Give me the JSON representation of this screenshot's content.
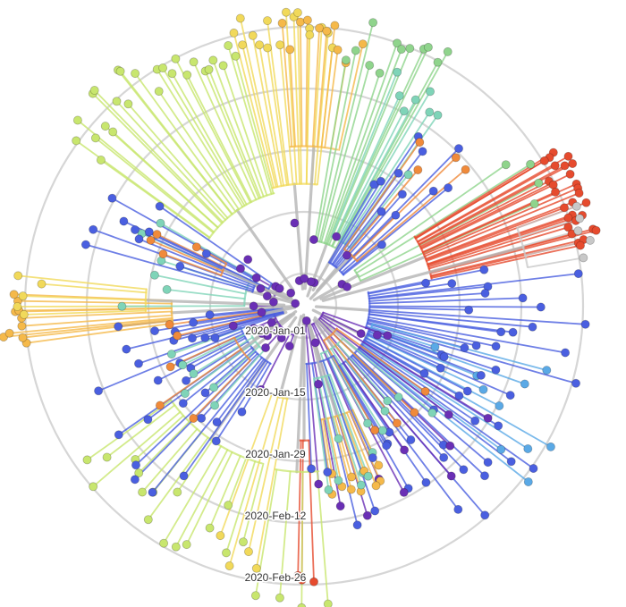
{
  "tree": {
    "view": "radial",
    "time_rings": [
      "2020-Jan-01",
      "2020-Jan-15",
      "2020-Jan-29",
      "2020-Feb-12",
      "2020-Feb-26"
    ],
    "ring_color": "#d6d6d6",
    "stem_color": "#b8b8b8",
    "palette": {
      "blue": "#4a5fe0",
      "indigo": "#6a55d0",
      "purple": "#6a2fb5",
      "light_blue": "#5aa9e6",
      "teal": "#7fd4b8",
      "green": "#8fd48c",
      "lime": "#c8e66e",
      "yellow": "#f1d95a",
      "light_orange": "#f5b94a",
      "orange": "#f08a3a",
      "red": "#e64b2e",
      "grey": "#c8c8c8"
    },
    "clades": [
      {
        "color": "lime",
        "start": 305,
        "end": 345,
        "n": 26,
        "len": [
          0.82,
          1.0
        ],
        "stem": [
          0.36,
          0.6
        ]
      },
      {
        "color": "yellow",
        "start": 345,
        "end": 6,
        "n": 16,
        "len": [
          0.85,
          1.0
        ],
        "stem": [
          0.3,
          0.55
        ]
      },
      {
        "color": "light_orange",
        "start": 355,
        "end": 12,
        "n": 10,
        "len": [
          0.8,
          0.95
        ],
        "stem": [
          0.3,
          0.55
        ]
      },
      {
        "color": "green",
        "start": 10,
        "end": 30,
        "n": 12,
        "len": [
          0.8,
          0.98
        ],
        "stem": [
          0.2,
          0.4
        ]
      },
      {
        "color": "teal",
        "start": 22,
        "end": 38,
        "n": 8,
        "len": [
          0.55,
          0.85
        ],
        "stem": [
          0.15,
          0.35
        ]
      },
      {
        "color": "blue",
        "start": 30,
        "end": 52,
        "n": 12,
        "len": [
          0.3,
          0.8
        ],
        "stem": [
          0.08,
          0.25
        ]
      },
      {
        "color": "orange",
        "start": 36,
        "end": 50,
        "n": 4,
        "len": [
          0.45,
          0.75
        ],
        "stem": [
          0.1,
          0.3
        ]
      },
      {
        "color": "green",
        "start": 55,
        "end": 66,
        "n": 4,
        "len": [
          0.8,
          0.95
        ],
        "stem": [
          0.15,
          0.35
        ]
      },
      {
        "color": "red",
        "start": 58,
        "end": 78,
        "n": 28,
        "len": [
          0.9,
          1.0
        ],
        "stem": [
          0.4,
          0.75
        ]
      },
      {
        "color": "grey",
        "start": 70,
        "end": 80,
        "n": 5,
        "len": [
          0.92,
          0.98
        ],
        "stem": [
          0.4,
          0.75
        ]
      },
      {
        "color": "blue",
        "start": 78,
        "end": 110,
        "n": 20,
        "len": [
          0.4,
          0.95
        ],
        "stem": [
          0.08,
          0.3
        ]
      },
      {
        "color": "light_blue",
        "start": 105,
        "end": 128,
        "n": 10,
        "len": [
          0.45,
          0.95
        ],
        "stem": [
          0.1,
          0.35
        ]
      },
      {
        "color": "blue",
        "start": 110,
        "end": 150,
        "n": 24,
        "len": [
          0.4,
          0.95
        ],
        "stem": [
          0.05,
          0.3
        ]
      },
      {
        "color": "purple",
        "start": 110,
        "end": 175,
        "n": 12,
        "len": [
          0.15,
          0.75
        ],
        "stem": [
          0.04,
          0.2
        ]
      },
      {
        "color": "teal",
        "start": 130,
        "end": 160,
        "n": 8,
        "len": [
          0.35,
          0.6
        ],
        "stem": [
          0.1,
          0.3
        ]
      },
      {
        "color": "orange",
        "start": 125,
        "end": 150,
        "n": 4,
        "len": [
          0.4,
          0.6
        ],
        "stem": [
          0.1,
          0.3
        ]
      },
      {
        "color": "light_orange",
        "start": 155,
        "end": 172,
        "n": 10,
        "len": [
          0.55,
          0.7
        ],
        "stem": [
          0.15,
          0.4
        ]
      },
      {
        "color": "blue",
        "start": 150,
        "end": 178,
        "n": 6,
        "len": [
          0.5,
          0.75
        ],
        "stem": [
          0.1,
          0.35
        ]
      },
      {
        "color": "red",
        "start": 178,
        "end": 182,
        "n": 3,
        "len": [
          0.88,
          0.92
        ],
        "stem": [
          0.3,
          0.6
        ]
      },
      {
        "color": "lime",
        "start": 175,
        "end": 190,
        "n": 4,
        "len": [
          0.95,
          1.0
        ],
        "stem": [
          0.3,
          0.6
        ]
      },
      {
        "color": "yellow",
        "start": 190,
        "end": 200,
        "n": 4,
        "len": [
          0.78,
          0.9
        ],
        "stem": [
          0.3,
          0.55
        ]
      },
      {
        "color": "teal",
        "start": 160,
        "end": 172,
        "n": 5,
        "len": [
          0.45,
          0.65
        ],
        "stem": [
          0.15,
          0.4
        ]
      },
      {
        "color": "lime",
        "start": 195,
        "end": 235,
        "n": 16,
        "len": [
          0.7,
          0.92
        ],
        "stem": [
          0.3,
          0.55
        ]
      },
      {
        "color": "blue",
        "start": 210,
        "end": 250,
        "n": 18,
        "len": [
          0.4,
          0.8
        ],
        "stem": [
          0.05,
          0.3
        ]
      },
      {
        "color": "teal",
        "start": 222,
        "end": 250,
        "n": 6,
        "len": [
          0.4,
          0.55
        ],
        "stem": [
          0.1,
          0.3
        ]
      },
      {
        "color": "orange",
        "start": 225,
        "end": 245,
        "n": 3,
        "len": [
          0.45,
          0.6
        ],
        "stem": [
          0.1,
          0.3
        ]
      },
      {
        "color": "purple",
        "start": 200,
        "end": 300,
        "n": 14,
        "len": [
          0.05,
          0.35
        ],
        "stem": [
          0.02,
          0.15
        ]
      },
      {
        "color": "blue",
        "start": 250,
        "end": 265,
        "n": 10,
        "len": [
          0.3,
          0.65
        ],
        "stem": [
          0.05,
          0.3
        ]
      },
      {
        "color": "orange",
        "start": 256,
        "end": 262,
        "n": 2,
        "len": [
          0.4,
          0.55
        ],
        "stem": [
          0.1,
          0.3
        ]
      },
      {
        "color": "light_orange",
        "start": 262,
        "end": 272,
        "n": 10,
        "len": [
          0.9,
          1.0
        ],
        "stem": [
          0.3,
          0.55
        ]
      },
      {
        "color": "yellow",
        "start": 268,
        "end": 276,
        "n": 5,
        "len": [
          0.85,
          0.95
        ],
        "stem": [
          0.3,
          0.55
        ]
      },
      {
        "color": "teal",
        "start": 270,
        "end": 300,
        "n": 6,
        "len": [
          0.45,
          0.6
        ],
        "stem": [
          0.1,
          0.35
        ]
      },
      {
        "color": "blue",
        "start": 285,
        "end": 300,
        "n": 8,
        "len": [
          0.35,
          0.75
        ],
        "stem": [
          0.05,
          0.3
        ]
      },
      {
        "color": "orange",
        "start": 290,
        "end": 298,
        "n": 4,
        "len": [
          0.4,
          0.55
        ],
        "stem": [
          0.1,
          0.3
        ]
      },
      {
        "color": "blue",
        "start": 296,
        "end": 304,
        "n": 2,
        "len": [
          0.55,
          0.65
        ],
        "stem": [
          0.1,
          0.3
        ]
      }
    ]
  }
}
